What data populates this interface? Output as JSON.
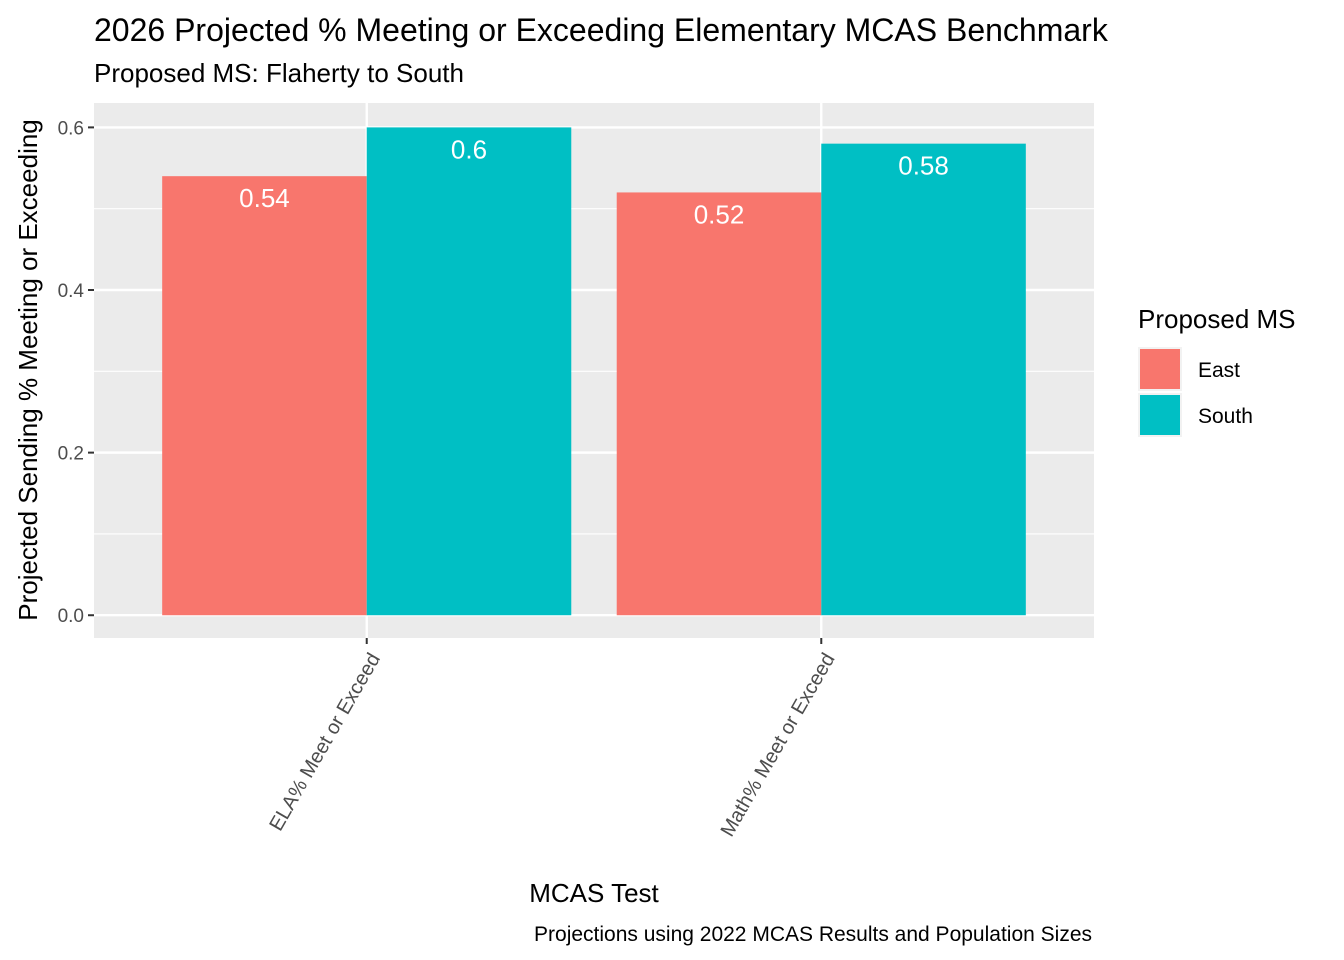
{
  "chart_data": {
    "type": "bar",
    "title": "2026 Projected % Meeting or Exceeding Elementary MCAS Benchmark",
    "subtitle": "Proposed MS: Flaherty to South",
    "xlabel": "MCAS Test",
    "ylabel": "Projected Sending % Meeting or Exceeding",
    "caption": "Projections using 2022 MCAS Results and Population Sizes",
    "categories": [
      "ELA% Meet or Exceed",
      "Math% Meet or Exceed"
    ],
    "series": [
      {
        "name": "East",
        "values": [
          0.54,
          0.52
        ],
        "color": "#F8766D"
      },
      {
        "name": "South",
        "values": [
          0.6,
          0.58
        ],
        "color": "#00BFC4"
      }
    ],
    "data_labels": [
      [
        "0.54",
        "0.52"
      ],
      [
        "0.6",
        "0.58"
      ]
    ],
    "ylim": [
      -0.028,
      0.63
    ],
    "y_ticks": [
      "0.0",
      "0.2",
      "0.4",
      "0.6"
    ],
    "legend": {
      "title": "Proposed MS",
      "position": "right"
    },
    "grid": true,
    "panel_background": "#EBEBEB"
  }
}
